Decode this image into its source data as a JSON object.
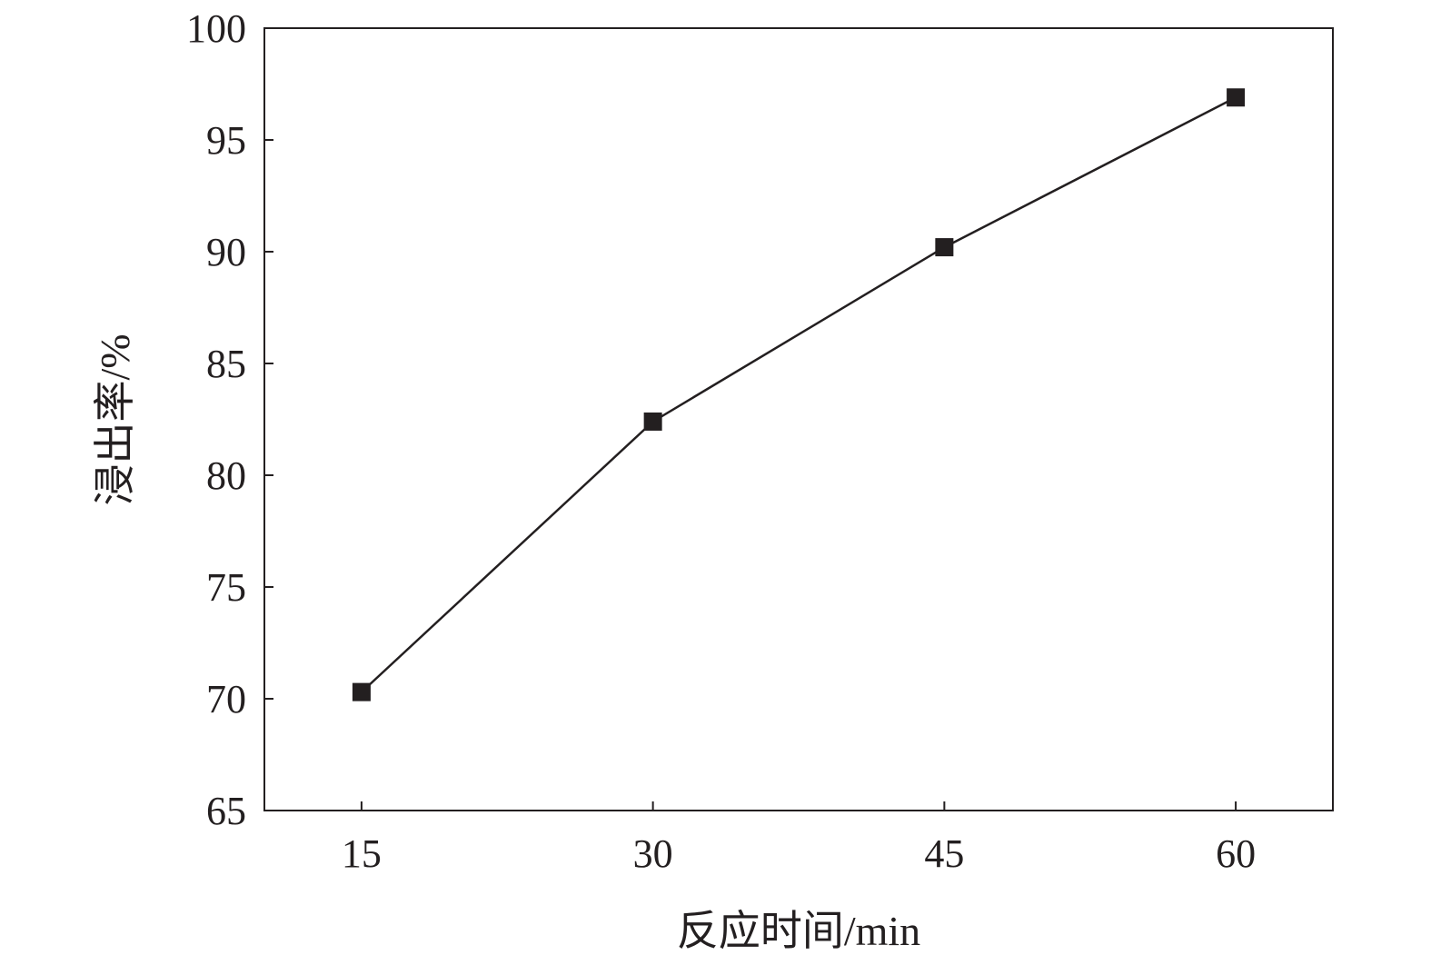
{
  "chart_data": {
    "type": "line",
    "title": "",
    "xlabel": "反应时间/min",
    "ylabel": "浸出率/%",
    "x": [
      15,
      30,
      45,
      60
    ],
    "series": [
      {
        "values": [
          70.3,
          82.4,
          90.2,
          96.9
        ],
        "marker": "square",
        "color": "#231f20"
      }
    ],
    "xlim": [
      10,
      65
    ],
    "ylim": [
      65,
      100
    ],
    "xticks": [
      "15",
      "30",
      "45",
      "60"
    ],
    "yticks": [
      "65",
      "70",
      "75",
      "80",
      "85",
      "90",
      "95",
      "100"
    ],
    "grid": false,
    "legend": "none"
  }
}
